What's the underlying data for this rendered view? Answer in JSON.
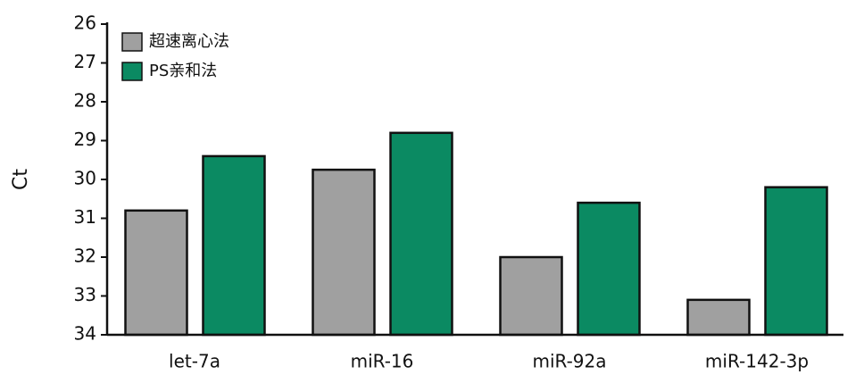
{
  "chart_data": {
    "type": "bar",
    "y_label": "Ct",
    "categories": [
      "let-7a",
      "miR-16",
      "miR-92a",
      "miR-142-3p"
    ],
    "series": [
      {
        "name": "超速离心法",
        "color": "#a0a0a0",
        "values": [
          30.8,
          29.75,
          32.0,
          33.1
        ]
      },
      {
        "name": "PS亲和法",
        "color": "#0b8a62",
        "values": [
          29.4,
          28.8,
          30.6,
          30.2
        ]
      }
    ],
    "ylim": [
      34,
      26
    ],
    "yticks": [
      26,
      27,
      28,
      29,
      30,
      31,
      32,
      33,
      34
    ],
    "legend": "upper-left"
  }
}
